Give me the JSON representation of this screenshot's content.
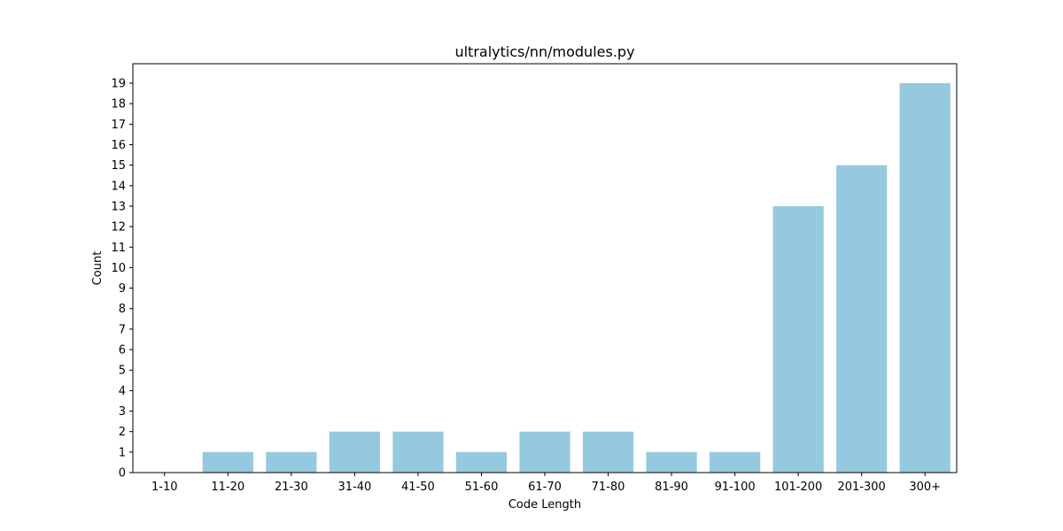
{
  "chart_data": {
    "type": "bar",
    "title": "ultralytics/nn/modules.py",
    "xlabel": "Code Length",
    "ylabel": "Count",
    "categories": [
      "1-10",
      "11-20",
      "21-30",
      "31-40",
      "41-50",
      "51-60",
      "61-70",
      "71-80",
      "81-90",
      "91-100",
      "101-200",
      "201-300",
      "300+"
    ],
    "values": [
      0,
      1,
      1,
      2,
      2,
      1,
      2,
      2,
      1,
      1,
      13,
      15,
      19
    ],
    "ylim": [
      0,
      19.95
    ],
    "yticks": [
      0,
      1,
      2,
      3,
      4,
      5,
      6,
      7,
      8,
      9,
      10,
      11,
      12,
      13,
      14,
      15,
      16,
      17,
      18,
      19
    ],
    "grid": false,
    "colors": {
      "bar": "#95c9df",
      "axis": "#000000"
    }
  }
}
